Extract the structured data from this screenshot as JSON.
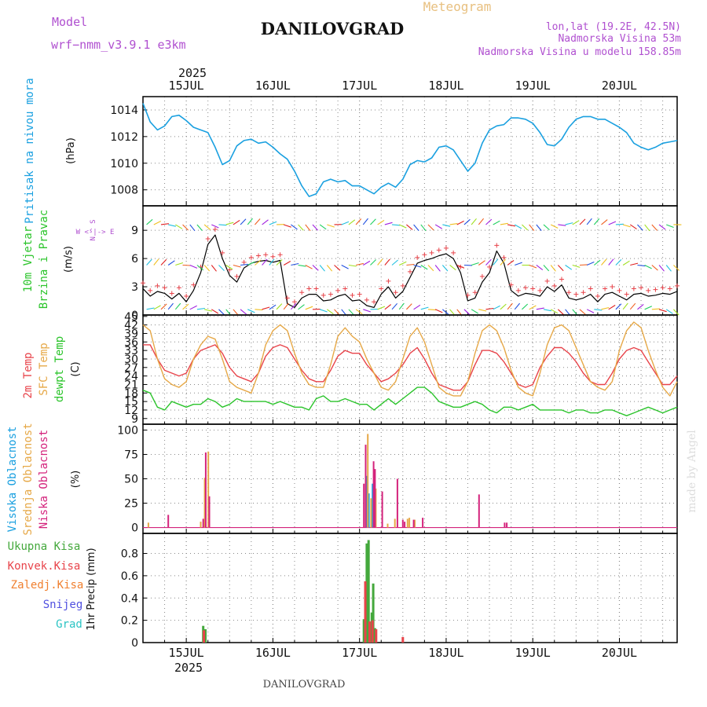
{
  "header": {
    "model_label": "Model",
    "model_name": "wrf−nmm_v3.9.1  e3km",
    "title": "DANILOVGRAD",
    "meteogram_label": "Meteogram",
    "coords": "lon,lat (19.2E, 42.5N)",
    "elevation": "Nadmorska Visina 53m",
    "model_elevation": "Nadmorska Visina u modelu 158.85m",
    "footer_title": "DANILOVGRAD",
    "watermark": "made by Angel"
  },
  "colors": {
    "pressure": "#1aa0e0",
    "temp2m": "#e8434a",
    "sfc": "#e6a847",
    "dew": "#2bc42b",
    "high": "#1aa0e0",
    "mid": "#e6a847",
    "low": "#d4237c",
    "total": "#44a83c",
    "conv": "#e8434a",
    "frz": "#f08030",
    "snow": "#5050e0",
    "grad": "#2bc4c4",
    "purple": "#b050d0",
    "tan": "#e8c080",
    "grid": "#888888"
  },
  "time_axis": {
    "year": "2025",
    "days": [
      "15JUL",
      "16JUL",
      "17JUL",
      "18JUL",
      "19JUL",
      "20JUL"
    ],
    "day_hours": [
      12,
      36,
      60,
      84,
      108,
      132
    ],
    "t_start_hours": 0,
    "t_end_hours": 148
  },
  "chart_data": [
    {
      "type": "line",
      "panel": "pressure",
      "ylabel": "Pritisak na nivou mora",
      "unit": "(hPa)",
      "ylim": [
        1006.8,
        1015
      ],
      "yticks": [
        "1008",
        "1010",
        "1012",
        "1014"
      ],
      "ytick_values": [
        1008,
        1010,
        1012,
        1014
      ],
      "x": [
        0,
        2,
        4,
        6,
        8,
        10,
        12,
        14,
        16,
        18,
        20,
        22,
        24,
        26,
        28,
        30,
        32,
        34,
        36,
        38,
        40,
        42,
        44,
        46,
        48,
        50,
        52,
        54,
        56,
        58,
        60,
        62,
        64,
        66,
        68,
        70,
        72,
        74,
        76,
        78,
        80,
        82,
        84,
        86,
        88,
        90,
        92,
        94,
        96,
        98,
        100,
        102,
        104,
        106,
        108,
        110,
        112,
        114,
        116,
        118,
        120,
        122,
        124,
        126,
        128,
        130,
        132,
        134,
        136,
        138,
        140,
        142,
        144,
        146,
        148
      ],
      "values": [
        1014.5,
        1013.1,
        1012.5,
        1012.8,
        1013.5,
        1013.6,
        1013.2,
        1012.7,
        1012.5,
        1012.3,
        1011.2,
        1009.9,
        1010.2,
        1011.3,
        1011.7,
        1011.8,
        1011.5,
        1011.6,
        1011.2,
        1010.7,
        1010.3,
        1009.4,
        1008.3,
        1007.5,
        1007.7,
        1008.6,
        1008.8,
        1008.6,
        1008.7,
        1008.3,
        1008.3,
        1008.0,
        1007.7,
        1008.2,
        1008.5,
        1008.2,
        1008.8,
        1009.9,
        1010.2,
        1010.1,
        1010.4,
        1011.2,
        1011.3,
        1011.0,
        1010.2,
        1009.4,
        1010.0,
        1011.5,
        1012.5,
        1012.8,
        1012.9,
        1013.4,
        1013.4,
        1013.3,
        1013.0,
        1012.3,
        1011.4,
        1011.3,
        1011.8,
        1012.7,
        1013.3,
        1013.5,
        1013.5,
        1013.3,
        1013.3,
        1013.0,
        1012.7,
        1012.3,
        1011.5,
        1011.2,
        1011.0,
        1011.2,
        1011.5,
        1011.6,
        1011.7
      ]
    },
    {
      "type": "line",
      "panel": "wind",
      "ylabel_line1": "10m Vjetar",
      "ylabel_line2": "Brzina i Pravac",
      "unit": "(m/s)",
      "compass": "W <-|-> E",
      "compass_ns": "N ^ S",
      "ylim": [
        0,
        11.6
      ],
      "yticks": [
        "0",
        "3",
        "6",
        "9"
      ],
      "ytick_values": [
        0,
        3,
        6,
        9
      ],
      "x": [
        0,
        2,
        4,
        6,
        8,
        10,
        12,
        14,
        16,
        18,
        20,
        22,
        24,
        26,
        28,
        30,
        32,
        34,
        36,
        38,
        40,
        42,
        44,
        46,
        48,
        50,
        52,
        54,
        56,
        58,
        60,
        62,
        64,
        66,
        68,
        70,
        72,
        74,
        76,
        78,
        80,
        82,
        84,
        86,
        88,
        90,
        92,
        94,
        96,
        98,
        100,
        102,
        104,
        106,
        108,
        110,
        112,
        114,
        116,
        118,
        120,
        122,
        124,
        126,
        128,
        130,
        132,
        134,
        136,
        138,
        140,
        142,
        144,
        146,
        148
      ],
      "values": [
        2.8,
        2.0,
        2.5,
        2.3,
        1.7,
        2.3,
        1.4,
        2.6,
        4.5,
        7.5,
        8.5,
        6.0,
        4.2,
        3.5,
        5.0,
        5.5,
        5.7,
        5.8,
        5.6,
        5.8,
        1.2,
        0.8,
        1.8,
        2.2,
        2.2,
        1.5,
        1.6,
        2.0,
        2.2,
        1.5,
        1.6,
        1.0,
        0.8,
        2.2,
        3.0,
        1.8,
        2.5,
        4.0,
        5.5,
        5.8,
        6.0,
        6.3,
        6.5,
        6.0,
        4.5,
        1.5,
        1.8,
        3.5,
        4.5,
        6.8,
        5.5,
        2.6,
        2.0,
        2.3,
        2.2,
        2.0,
        3.0,
        2.5,
        3.2,
        1.8,
        1.6,
        1.8,
        2.2,
        1.4,
        2.2,
        2.4,
        2.0,
        1.6,
        2.2,
        2.3,
        2.0,
        2.1,
        2.3,
        2.2,
        2.5
      ]
    },
    {
      "type": "line",
      "panel": "temperature",
      "ylabel_2m": "2m Temp",
      "ylabel_sfc": "SFC Temp",
      "ylabel_dew": "dewpt Temp",
      "unit": "(C)",
      "ylim": [
        7,
        45.5
      ],
      "yticks": [
        "9",
        "12",
        "15",
        "18",
        "21",
        "24",
        "27",
        "30",
        "33",
        "36",
        "39",
        "42",
        "45"
      ],
      "ytick_values": [
        9,
        12,
        15,
        18,
        21,
        24,
        27,
        30,
        33,
        36,
        39,
        42,
        45
      ],
      "x": [
        0,
        2,
        4,
        6,
        8,
        10,
        12,
        14,
        16,
        18,
        20,
        22,
        24,
        26,
        28,
        30,
        32,
        34,
        36,
        38,
        40,
        42,
        44,
        46,
        48,
        50,
        52,
        54,
        56,
        58,
        60,
        62,
        64,
        66,
        68,
        70,
        72,
        74,
        76,
        78,
        80,
        82,
        84,
        86,
        88,
        90,
        92,
        94,
        96,
        98,
        100,
        102,
        104,
        106,
        108,
        110,
        112,
        114,
        116,
        118,
        120,
        122,
        124,
        126,
        128,
        130,
        132,
        134,
        136,
        138,
        140,
        142,
        144,
        146,
        148
      ],
      "series": [
        {
          "name": "2m Temp",
          "values": [
            35,
            35,
            30,
            26,
            25,
            24,
            25,
            30,
            33,
            34,
            35,
            32,
            27,
            24,
            23,
            22,
            25,
            31,
            34,
            35,
            34,
            30,
            26,
            23,
            22,
            22,
            26,
            31,
            33,
            32,
            32,
            28,
            25,
            22,
            23,
            25,
            28,
            32,
            34,
            30,
            25,
            21,
            20,
            19,
            19,
            22,
            28,
            33,
            33,
            32,
            29,
            25,
            21,
            20,
            21,
            27,
            31,
            34,
            34,
            32,
            29,
            25,
            22,
            21,
            21,
            25,
            30,
            33,
            34,
            33,
            29,
            25,
            21,
            21,
            24
          ]
        },
        {
          "name": "SFC Temp",
          "values": [
            42,
            40,
            30,
            23,
            21,
            20,
            22,
            30,
            35,
            38,
            37,
            30,
            22,
            20,
            19,
            18,
            25,
            35,
            40,
            42,
            40,
            32,
            25,
            21,
            20,
            20,
            28,
            38,
            41,
            38,
            36,
            30,
            25,
            20,
            19,
            22,
            30,
            38,
            41,
            36,
            28,
            20,
            18,
            17,
            17,
            22,
            32,
            40,
            42,
            40,
            34,
            26,
            20,
            18,
            17,
            25,
            35,
            41,
            42,
            40,
            34,
            28,
            22,
            20,
            19,
            22,
            33,
            40,
            43,
            41,
            33,
            26,
            20,
            17,
            22
          ]
        },
        {
          "name": "dewpt Temp",
          "values": [
            19,
            18,
            13,
            12,
            15,
            14,
            13,
            14,
            14,
            16,
            15,
            13,
            14,
            16,
            15,
            15,
            15,
            15,
            14,
            15,
            14,
            13,
            13,
            12,
            16,
            17,
            15,
            15,
            16,
            15,
            14,
            14,
            12,
            14,
            16,
            14,
            16,
            18,
            20,
            20,
            18,
            15,
            14,
            13,
            13,
            14,
            15,
            14,
            12,
            11,
            13,
            13,
            12,
            13,
            14,
            12,
            12,
            12,
            12,
            11,
            12,
            12,
            11,
            11,
            12,
            12,
            11,
            10,
            11,
            12,
            13,
            12,
            11,
            12,
            13
          ]
        }
      ]
    },
    {
      "type": "bar",
      "panel": "clouds",
      "ylabel_high": "Visoka Oblacnost",
      "ylabel_mid": "Srednja Oblacnost",
      "ylabel_low": "Niska Oblacnost",
      "unit": "(%)",
      "ylim": [
        -6,
        106
      ],
      "yticks": [
        "0",
        "25",
        "50",
        "75",
        "100"
      ],
      "ytick_values": [
        0,
        25,
        50,
        75,
        100
      ],
      "series": [
        {
          "name": "Visoka Oblacnost",
          "x": [
            62.0,
            62.6,
            63.6
          ],
          "values": [
            53,
            35,
            45
          ]
        },
        {
          "name": "Srednja Oblacnost",
          "x": [
            1.5,
            16.0,
            17.1,
            18.1,
            62.3,
            63.2,
            64.0,
            64.5,
            67.8,
            69.8,
            73.3,
            73.8,
            75.3
          ],
          "values": [
            5,
            6,
            51,
            78,
            96,
            30,
            50,
            40,
            4,
            9,
            9,
            10,
            8
          ]
        },
        {
          "name": "Niska Oblacnost",
          "x": [
            7.0,
            16.7,
            17.4,
            18.4,
            61.2,
            61.7,
            63.9,
            64.3,
            66.3,
            70.5,
            72.0,
            72.5,
            75.0,
            77.5,
            93.1,
            100.2,
            100.8
          ],
          "values": [
            13,
            9,
            77,
            32,
            45,
            85,
            68,
            60,
            37,
            50,
            8,
            6,
            8,
            10,
            34,
            5,
            5
          ]
        }
      ]
    },
    {
      "type": "bar",
      "panel": "precipitation",
      "legend": [
        "Ukupna Kisa",
        "Konvek.Kisa",
        "Zaledj.Kisa",
        "Snijeg",
        "Grad"
      ],
      "ylabel": "1hr Precip (mm)",
      "ylim": [
        0,
        0.98
      ],
      "yticks": [
        "0",
        "0.2",
        "0.4",
        "0.6",
        "0.8"
      ],
      "ytick_values": [
        0,
        0.2,
        0.4,
        0.6,
        0.8
      ],
      "series": [
        {
          "name": "Ukupna Kisa",
          "x": [
            16.7,
            17.3,
            61.2,
            62.0,
            62.5,
            63.4,
            63.8,
            64.3
          ],
          "values": [
            0.15,
            0.12,
            0.21,
            0.89,
            0.92,
            0.27,
            0.53,
            0.13
          ]
        },
        {
          "name": "Konvek.Kisa",
          "x": [
            16.9,
            61.6,
            62.8,
            63.6,
            64.6,
            72.0
          ],
          "values": [
            0.11,
            0.55,
            0.19,
            0.2,
            0.12,
            0.05
          ]
        }
      ]
    }
  ]
}
